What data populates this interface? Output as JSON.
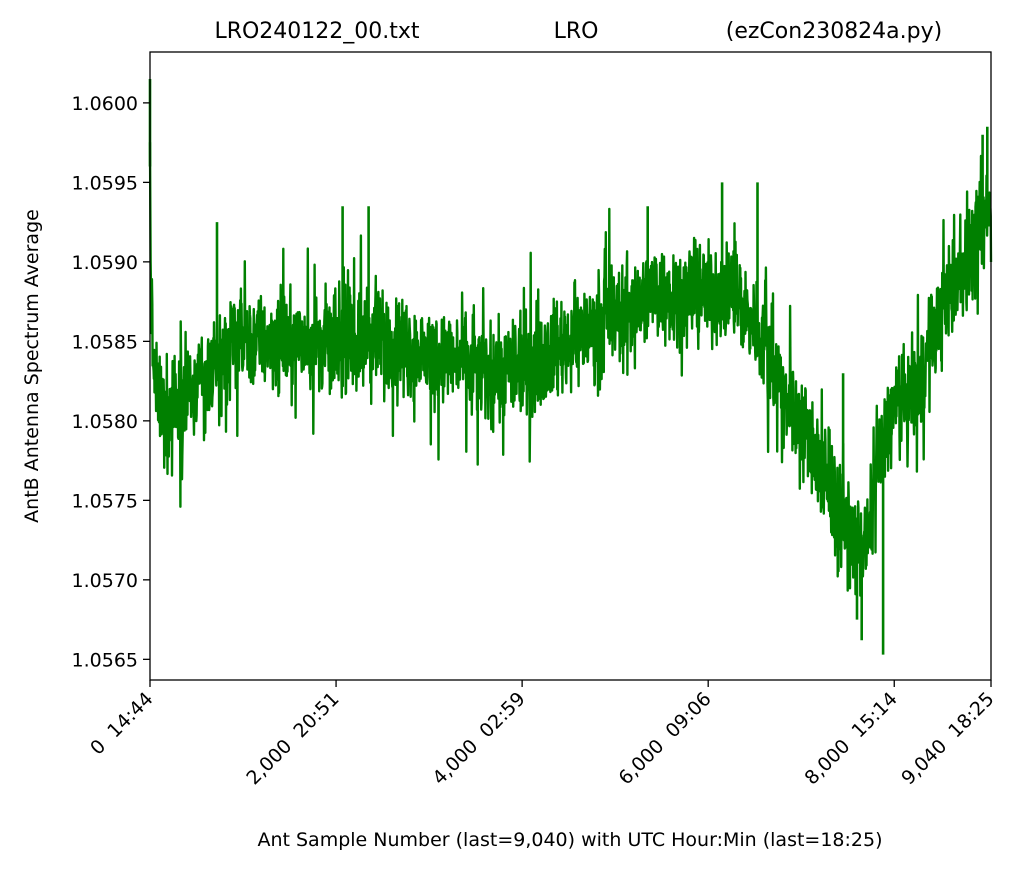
{
  "chart_data": {
    "type": "line",
    "title": {
      "left": "LRO240122_00.txt",
      "center": "LRO",
      "right": "(ezCon230824a.py)"
    },
    "xlabel": "Ant Sample Number (last=9,040) with UTC Hour:Min (last=18:25)",
    "ylabel": "AntB Antenna Spectrum Average",
    "xlim": [
      0,
      9040
    ],
    "ylim": [
      1.05637,
      1.06032
    ],
    "x_ticks": [
      {
        "value": 0,
        "label": "0  14:44"
      },
      {
        "value": 2000,
        "label": "2,000  20:51"
      },
      {
        "value": 4000,
        "label": "4,000  02:59"
      },
      {
        "value": 6000,
        "label": "6,000  09:06"
      },
      {
        "value": 8000,
        "label": "8,000  15:14"
      },
      {
        "value": 9040,
        "label": "9,040  18:25"
      }
    ],
    "y_ticks": [
      {
        "value": 1.0565,
        "label": "1.0565"
      },
      {
        "value": 1.057,
        "label": "1.0570"
      },
      {
        "value": 1.0575,
        "label": "1.0575"
      },
      {
        "value": 1.058,
        "label": "1.0580"
      },
      {
        "value": 1.0585,
        "label": "1.0585"
      },
      {
        "value": 1.059,
        "label": "1.0590"
      },
      {
        "value": 1.0595,
        "label": "1.0595"
      },
      {
        "value": 1.06,
        "label": "1.0600"
      }
    ],
    "grid": false,
    "series": [
      {
        "color": "#008000",
        "envelope": {
          "x": [
            0,
            10,
            30,
            60,
            120,
            250,
            500,
            800,
            1000,
            1200,
            1500,
            1800,
            2000,
            2300,
            2600,
            3000,
            3300,
            3600,
            3900,
            4200,
            4500,
            4800,
            5100,
            5400,
            5700,
            6000,
            6300,
            6600,
            6800,
            7000,
            7200,
            7400,
            7600,
            7700,
            7800,
            7900,
            7950,
            8000,
            8100,
            8250,
            8400,
            8600,
            8800,
            9000,
            9040
          ],
          "mean": [
            1.0596,
            1.0589,
            1.0584,
            1.0582,
            1.0581,
            1.0581,
            1.0582,
            1.0584,
            1.0585,
            1.0585,
            1.0585,
            1.0585,
            1.0585,
            1.0585,
            1.0585,
            1.0584,
            1.0584,
            1.0583,
            1.0583,
            1.0584,
            1.0585,
            1.0586,
            1.0587,
            1.0588,
            1.0588,
            1.0588,
            1.0588,
            1.0585,
            1.0582,
            1.058,
            1.0577,
            1.0574,
            1.0572,
            1.0572,
            1.0576,
            1.0579,
            1.058,
            1.0581,
            1.0581,
            1.0582,
            1.0585,
            1.0588,
            1.059,
            1.0593,
            1.0593
          ],
          "spread": 0.00045
        },
        "extremes": [
          {
            "x": 0,
            "y": 1.06015
          },
          {
            "x": 720,
            "y": 1.05925
          },
          {
            "x": 2070,
            "y": 1.05935
          },
          {
            "x": 2350,
            "y": 1.05935
          },
          {
            "x": 5350,
            "y": 1.05935
          },
          {
            "x": 6150,
            "y": 1.0595
          },
          {
            "x": 6530,
            "y": 1.0595
          },
          {
            "x": 7220,
            "y": 1.05748
          },
          {
            "x": 7400,
            "y": 1.05705
          },
          {
            "x": 7600,
            "y": 1.05675
          },
          {
            "x": 7650,
            "y": 1.05662
          },
          {
            "x": 7880,
            "y": 1.05653
          },
          {
            "x": 7450,
            "y": 1.0583
          },
          {
            "x": 9000,
            "y": 1.05985
          },
          {
            "x": 8950,
            "y": 1.0598
          }
        ]
      }
    ]
  }
}
